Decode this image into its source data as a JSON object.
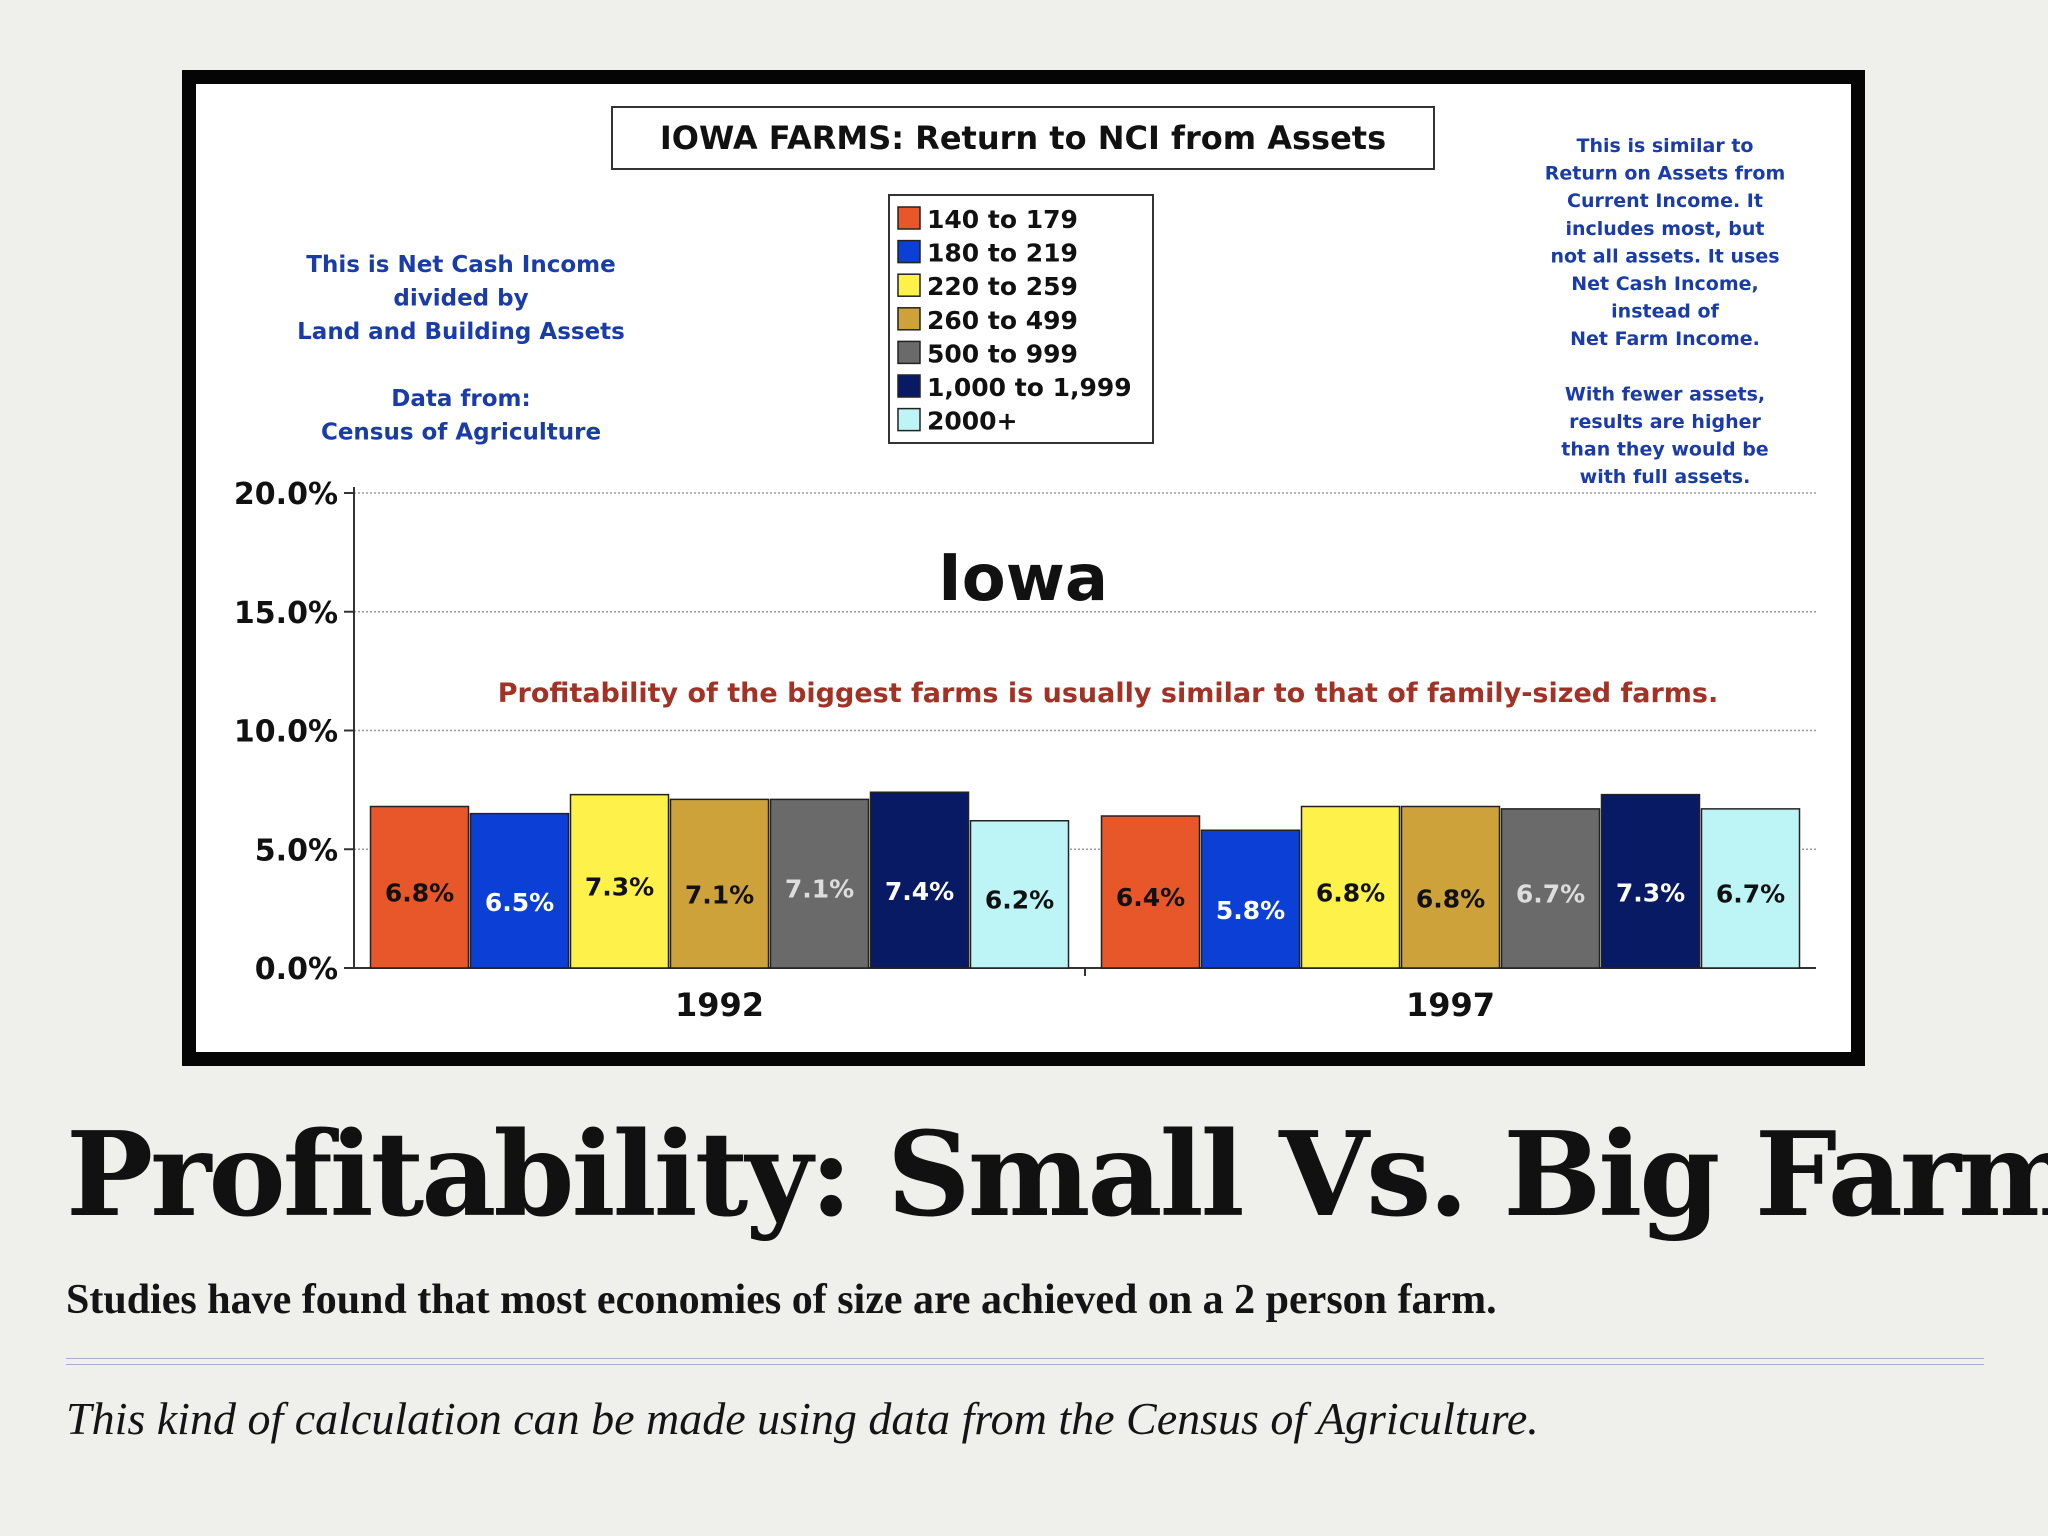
{
  "slide": {
    "title": "Profitability:  Small Vs. Big Farms",
    "subtitle": "Studies have found that most economies of size are achieved on a 2 person farm.",
    "note": "This kind of calculation can be made using data from the Census of Agriculture."
  },
  "chart_data": {
    "type": "bar",
    "title": "IOWA FARMS:  Return to NCI from Assets",
    "headline": "Iowa",
    "annotation": "Profitability of the biggest farms is usually similar to that of family-sized farms.",
    "left_note": [
      "This is Net Cash Income",
      "divided by",
      "Land and Building Assets",
      "",
      "Data from:",
      "Census of Agriculture"
    ],
    "right_note": [
      "This is similar to",
      "Return on Assets from",
      "Current Income.  It",
      "includes most, but",
      "not all assets.  It uses",
      "Net Cash Income,",
      "instead of",
      "Net Farm Income.",
      "",
      "With fewer assets,",
      "results are higher",
      "than they would be",
      "with full assets."
    ],
    "categories": [
      "1992",
      "1997"
    ],
    "series": [
      {
        "name": "140 to 179",
        "color": "#e8572a",
        "values": [
          6.8,
          6.4
        ],
        "labels": [
          "6.8%",
          "6.4%"
        ]
      },
      {
        "name": "180 to 219",
        "color": "#0b3fd6",
        "values": [
          6.5,
          5.8
        ],
        "labels": [
          "6.5%",
          "5.8%"
        ]
      },
      {
        "name": "220 to 259",
        "color": "#fdf14a",
        "values": [
          7.3,
          6.8
        ],
        "labels": [
          "7.3%",
          "6.8%"
        ]
      },
      {
        "name": "260 to 499",
        "color": "#cea23b",
        "values": [
          7.1,
          6.8
        ],
        "labels": [
          "7.1%",
          "6.8%"
        ]
      },
      {
        "name": "500 to 999",
        "color": "#6a6a6a",
        "values": [
          7.1,
          6.7
        ],
        "labels": [
          "7.1%",
          "6.7%"
        ]
      },
      {
        "name": "1,000 to 1,999",
        "color": "#071a63",
        "values": [
          7.4,
          7.3
        ],
        "labels": [
          "7.4%",
          "7.3%"
        ]
      },
      {
        "name": "2000+",
        "color": "#bdf5f7",
        "values": [
          6.2,
          6.7
        ],
        "labels": [
          "6.2%",
          "6.7%"
        ]
      }
    ],
    "ylim": [
      0,
      20
    ],
    "yticks": [
      "0.0%",
      "5.0%",
      "10.0%",
      "15.0%",
      "20.0%"
    ],
    "grid": true,
    "legend_position": "top-center"
  }
}
